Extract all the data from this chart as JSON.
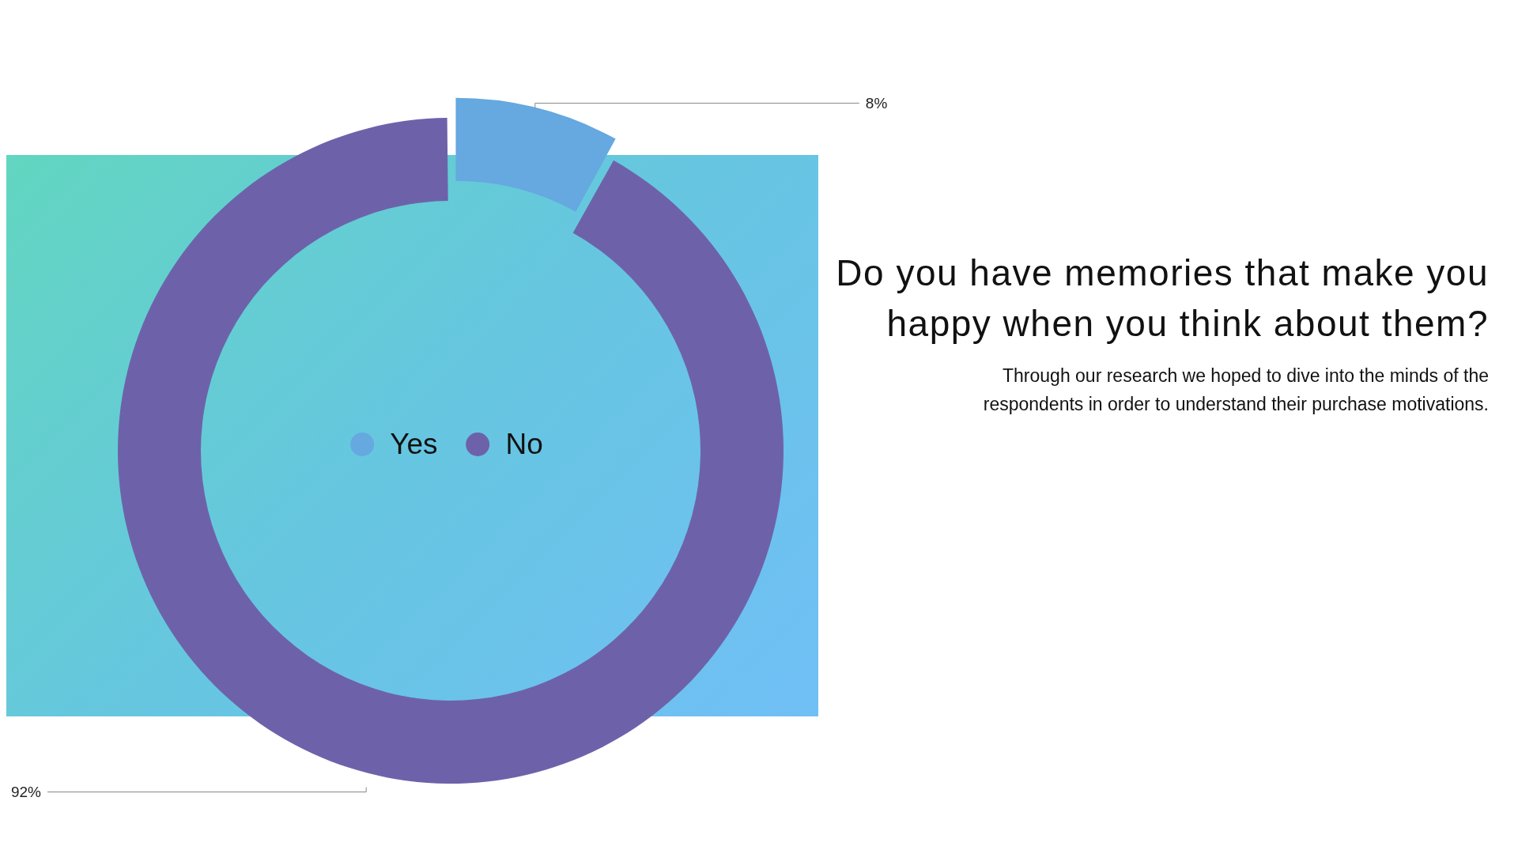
{
  "chart_data": {
    "type": "donut",
    "title": "Do you have memories that make you happy when you think about them?",
    "subtitle": "Through our research we hoped to dive into the minds of the respondents in order to understand their purchase motivations.",
    "categories": [
      "Yes",
      "No"
    ],
    "values": [
      8,
      92
    ],
    "colors": [
      "#66a8e0",
      "#6d62aa"
    ],
    "legend": "center",
    "value_labels": [
      "8%",
      "92%"
    ]
  }
}
